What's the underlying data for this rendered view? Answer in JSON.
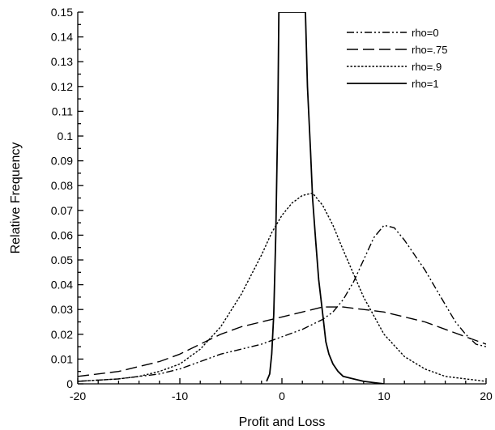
{
  "chart_data": {
    "type": "line",
    "title": "",
    "xlabel": "Profit and Loss",
    "ylabel": "Relative Frequency",
    "xlim": [
      -20,
      20
    ],
    "ylim": [
      0,
      0.15
    ],
    "x_ticks": [
      -20,
      -10,
      0,
      10,
      20
    ],
    "x_tick_labels": [
      "-20",
      "-10",
      "0",
      "10",
      "20"
    ],
    "y_ticks": [
      0,
      0.01,
      0.02,
      0.03,
      0.04,
      0.05,
      0.06,
      0.07,
      0.08,
      0.09,
      0.1,
      0.11,
      0.12,
      0.13,
      0.14,
      0.15
    ],
    "y_tick_labels": [
      "0",
      "0.01",
      "0.02",
      "0.03",
      "0.04",
      "0.05",
      "0.06",
      "0.07",
      "0.08",
      "0.09",
      "0.1",
      "0.11",
      "0.12",
      "0.13",
      "0.14",
      "0.15"
    ],
    "grid": false,
    "legend_position": "top-right",
    "series": [
      {
        "name": "rho=0",
        "line_style": "dash-dot-dot",
        "x": [
          -20,
          -16,
          -12,
          -10,
          -8,
          -6,
          -4,
          -2,
          0,
          2,
          4,
          5,
          6,
          7,
          8,
          9,
          10,
          11,
          12,
          13,
          14,
          15,
          16,
          17,
          18,
          19,
          20
        ],
        "y": [
          0.001,
          0.002,
          0.004,
          0.006,
          0.009,
          0.012,
          0.014,
          0.016,
          0.019,
          0.022,
          0.026,
          0.029,
          0.034,
          0.041,
          0.05,
          0.059,
          0.064,
          0.063,
          0.058,
          0.052,
          0.046,
          0.039,
          0.032,
          0.025,
          0.02,
          0.016,
          0.015
        ]
      },
      {
        "name": "rho=.75",
        "line_style": "dashed",
        "x": [
          -20,
          -16,
          -12,
          -10,
          -8,
          -6,
          -4,
          -2,
          0,
          2,
          4,
          6,
          8,
          10,
          12,
          14,
          16,
          18,
          20
        ],
        "y": [
          0.003,
          0.005,
          0.009,
          0.012,
          0.016,
          0.02,
          0.023,
          0.025,
          0.027,
          0.029,
          0.031,
          0.031,
          0.03,
          0.029,
          0.027,
          0.025,
          0.022,
          0.019,
          0.016
        ]
      },
      {
        "name": "rho=.9",
        "line_style": "dotted",
        "x": [
          -20,
          -16,
          -14,
          -12,
          -10,
          -8,
          -6,
          -4,
          -2,
          -1,
          0,
          1,
          2,
          3,
          4,
          5,
          6,
          8,
          10,
          12,
          14,
          16,
          18,
          20
        ],
        "y": [
          0.001,
          0.002,
          0.003,
          0.005,
          0.008,
          0.014,
          0.023,
          0.036,
          0.052,
          0.061,
          0.068,
          0.073,
          0.076,
          0.077,
          0.072,
          0.064,
          0.054,
          0.035,
          0.02,
          0.011,
          0.006,
          0.003,
          0.002,
          0.001
        ]
      },
      {
        "name": "rho=1",
        "line_style": "solid",
        "x": [
          -1.5,
          -1.2,
          -1,
          -0.8,
          -0.6,
          -0.4,
          -0.3,
          2.3,
          2.5,
          2.8,
          3,
          3.3,
          3.6,
          4,
          4.3,
          4.6,
          5,
          5.5,
          6,
          7,
          8,
          9,
          10
        ],
        "y": [
          0.001,
          0.004,
          0.012,
          0.028,
          0.06,
          0.11,
          0.15,
          0.15,
          0.12,
          0.094,
          0.075,
          0.058,
          0.042,
          0.028,
          0.017,
          0.012,
          0.008,
          0.005,
          0.003,
          0.002,
          0.001,
          0.0005,
          0
        ]
      }
    ]
  }
}
